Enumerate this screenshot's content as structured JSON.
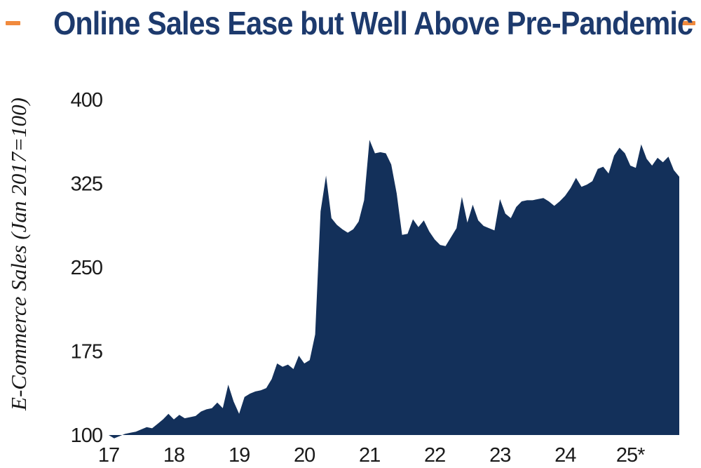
{
  "title": {
    "text": "Online Sales Ease but Well Above Pre-Pandemic"
  },
  "colors": {
    "title_navy": "#1d3a6d",
    "area_navy": "#13305a",
    "accent_orange": "#f18a3d",
    "axis_text": "#1a1a1a",
    "background": "#ffffff"
  },
  "chart_data": {
    "type": "area",
    "title": "Online Sales Ease but Well Above Pre-Pandemic",
    "ylabel": "E-Commerce Sales (Jan 2017=100)",
    "xlabel": "",
    "grid": false,
    "legend": "none",
    "ylim": [
      100,
      400
    ],
    "y_tick_values": [
      100,
      175,
      250,
      325,
      400
    ],
    "x_tick_labels": [
      "17",
      "18",
      "19",
      "20",
      "21",
      "22",
      "23",
      "24",
      "25*"
    ],
    "start_month": "2017-01",
    "frequency": "monthly",
    "series": [
      {
        "name": "E-Commerce Sales (Jan 2017=100)",
        "values": [
          100,
          97,
          99,
          101,
          102,
          103,
          105,
          107,
          106,
          110,
          114,
          119,
          114,
          118,
          115,
          116,
          117,
          121,
          123,
          124,
          129,
          124,
          145,
          130,
          119,
          134,
          137,
          139,
          140,
          142,
          150,
          164,
          161,
          163,
          159,
          171,
          164,
          167,
          190,
          300,
          332,
          294,
          288,
          284,
          281,
          284,
          291,
          310,
          364,
          352,
          353,
          352,
          342,
          316,
          279,
          280,
          293,
          286,
          292,
          282,
          275,
          270,
          269,
          277,
          285,
          313,
          290,
          306,
          292,
          287,
          285,
          283,
          311,
          298,
          294,
          304,
          309,
          310,
          310,
          311,
          312,
          309,
          305,
          309,
          314,
          321,
          330,
          322,
          324,
          327,
          338,
          340,
          334,
          350,
          357,
          352,
          341,
          339,
          360,
          347,
          341,
          348,
          344,
          349,
          337,
          331
        ]
      }
    ]
  }
}
